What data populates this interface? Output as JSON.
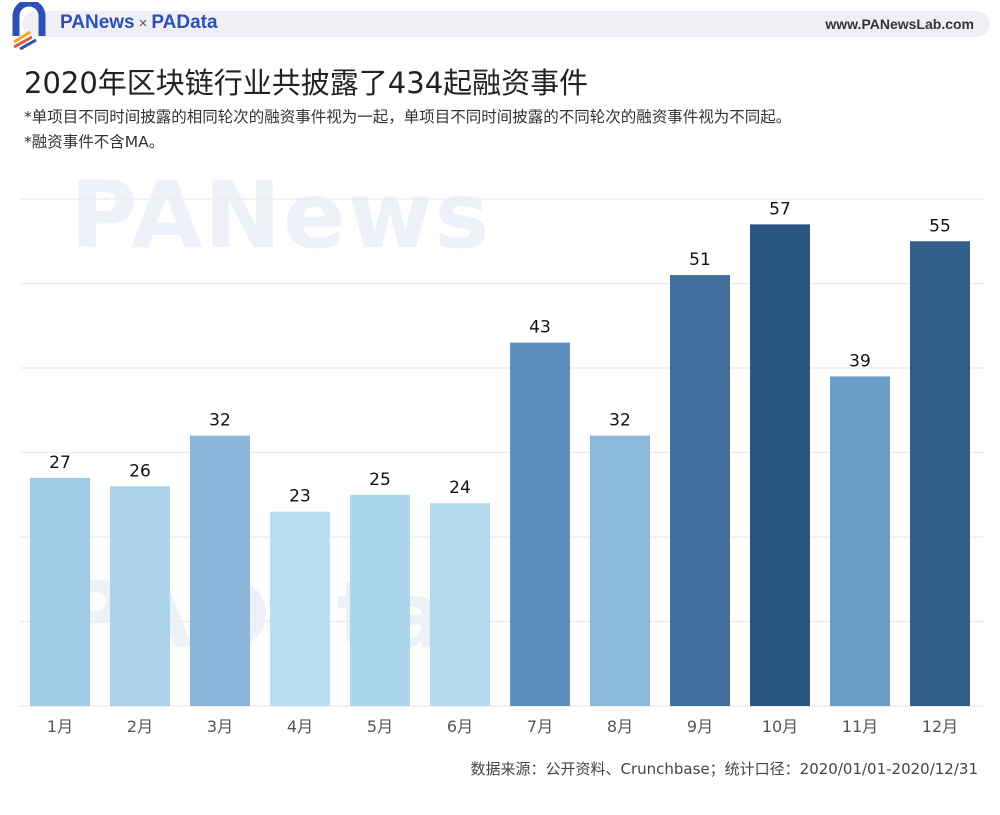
{
  "header": {
    "brand_left": "PANews",
    "brand_sep": "×",
    "brand_right": "PAData",
    "site": "www.PANewsLab.com"
  },
  "title": "2020年区块链行业共披露了434起融资事件",
  "notes": [
    "*单项目不同时间披露的相同轮次的融资事件视为一起，单项目不同时间披露的不同轮次的融资事件视为不同起。",
    "*融资事件不含MA。"
  ],
  "watermarks": [
    "PANews",
    "PAData"
  ],
  "source": "数据来源：公开资料、Crunchbase；统计口径：2020/01/01-2020/12/31",
  "chart_data": {
    "type": "bar",
    "title": "2020年区块链行业共披露了434起融资事件",
    "categories": [
      "1月",
      "2月",
      "3月",
      "4月",
      "5月",
      "6月",
      "7月",
      "8月",
      "9月",
      "10月",
      "11月",
      "12月"
    ],
    "values": [
      27,
      26,
      32,
      23,
      25,
      24,
      43,
      32,
      51,
      57,
      39,
      55
    ],
    "colors": [
      "#9fcbe5",
      "#abd3ea",
      "#8bb6d9",
      "#b9dff0",
      "#acd6ec",
      "#b4daef",
      "#5b8fbd",
      "#8cb8da",
      "#41709f",
      "#2b5682",
      "#6a9dc8",
      "#335e8c"
    ],
    "ylim": [
      0,
      60
    ],
    "grid": true,
    "data_labels": true
  }
}
